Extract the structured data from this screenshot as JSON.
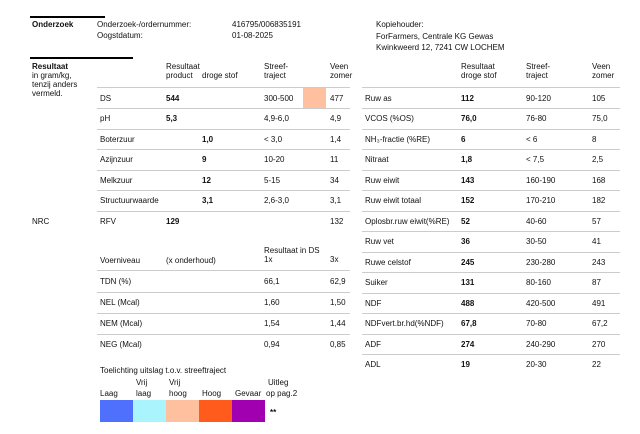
{
  "header": {
    "section": "Onderzoek",
    "fields": [
      {
        "label": "Onderzoek-/ordernummer:",
        "value": "416795/006835191"
      },
      {
        "label": "Oogstdatum:",
        "value": "01-08-2025"
      }
    ],
    "copy_holder": {
      "label": "Kopiehouder:",
      "lines": [
        "ForFarmers, Centrale KG Gewas",
        "Kwinkweerd 12, 7241 CW  LOCHEM"
      ]
    }
  },
  "results": {
    "title": "Resultaat",
    "note": [
      "in gram/kg,",
      "tenzij anders",
      "vermeld."
    ],
    "nrc": "NRC",
    "left_table": {
      "header": {
        "result": "Resultaat",
        "product": "product",
        "dry": "droge stof",
        "target": [
          "Streef-",
          "traject"
        ],
        "veen": [
          "Veen",
          "zomer"
        ]
      },
      "rows": [
        {
          "name": "DS",
          "product": "544",
          "target": "300-500",
          "flag_color": "#ffc0a0",
          "veen": "477"
        },
        {
          "name": "pH",
          "product": "5,3",
          "target": "4,9-6,0",
          "veen": "4,9"
        },
        {
          "name": "Boterzuur",
          "dry": "1,0",
          "target": "< 3,0",
          "veen": "1,4"
        },
        {
          "name": "Azijnzuur",
          "dry": "9",
          "target": "10-20",
          "veen": "11"
        },
        {
          "name": "Melkzuur",
          "dry": "12",
          "target": "5-15",
          "veen": "34"
        },
        {
          "name": "Structuurwaarde",
          "dry": "3,1",
          "target": "2,6-3,0",
          "veen": "3,1"
        },
        {
          "name": "RFV",
          "product": "129",
          "veen": "132"
        }
      ]
    },
    "energy_table": {
      "header": {
        "level": "Voerniveau",
        "unit": "(x onderhoud)",
        "result": "Resultaat in DS",
        "x1": "1x",
        "x3": "3x"
      },
      "rows": [
        {
          "name": "TDN (%)",
          "x1": "66,1",
          "x3": "62,9"
        },
        {
          "name": "NEL (Mcal)",
          "x1": "1,60",
          "x3": "1,50"
        },
        {
          "name": "NEM (Mcal)",
          "x1": "1,54",
          "x3": "1,44"
        },
        {
          "name": "NEG (Mcal)",
          "x1": "0,94",
          "x3": "0,85"
        }
      ]
    },
    "legend": {
      "title": "Toelichting uitslag t.o.v. streeftraject",
      "items": [
        {
          "lines": [
            "Laag"
          ],
          "color": "#4f6ffd"
        },
        {
          "lines": [
            "Vrij",
            "laag"
          ],
          "color": "#aaf4fd"
        },
        {
          "lines": [
            "Vrij",
            "hoog"
          ],
          "color": "#ffc0a0"
        },
        {
          "lines": [
            "Hoog"
          ],
          "color": "#ff5b1c"
        },
        {
          "lines": [
            "Gevaar"
          ],
          "color": "#a000b0"
        }
      ],
      "explain": [
        "Uitleg",
        "op pag.2"
      ],
      "mark": "**"
    },
    "right_table": {
      "header": {
        "result": [
          "Resultaat",
          "droge stof"
        ],
        "target": [
          "Streef-",
          "traject"
        ],
        "veen": [
          "Veen",
          "zomer"
        ]
      },
      "rows": [
        {
          "name": "Ruw as",
          "value": "112",
          "target": "90-120",
          "veen": "105"
        },
        {
          "name": "VCOS (%OS)",
          "value": "76,0",
          "target": "76-80",
          "veen": "75,0"
        },
        {
          "name": "NH₃-fractie (%RE)",
          "value": "6",
          "target": "< 6",
          "veen": "8"
        },
        {
          "name": "Nitraat",
          "value": "1,8",
          "target": "< 7,5",
          "veen": "2,5"
        },
        {
          "name": "Ruw eiwit",
          "value": "143",
          "target": "160-190",
          "veen": "168"
        },
        {
          "name": "Ruw eiwit totaal",
          "value": "152",
          "target": "170-210",
          "veen": "182"
        },
        {
          "name": "Oplosbr.ruw eiwit(%RE)",
          "value": "52",
          "target": "40-60",
          "veen": "57"
        },
        {
          "name": "Ruw vet",
          "value": "36",
          "target": "30-50",
          "veen": "41"
        },
        {
          "name": "Ruwe celstof",
          "value": "245",
          "target": "230-280",
          "veen": "243"
        },
        {
          "name": "Suiker",
          "value": "131",
          "target": "80-160",
          "veen": "87"
        },
        {
          "name": "NDF",
          "value": "488",
          "target": "420-500",
          "veen": "491"
        },
        {
          "name": "NDFvert.br.hd(%NDF)",
          "value": "67,8",
          "target": "70-80",
          "veen": "67,2"
        },
        {
          "name": "ADF",
          "value": "274",
          "target": "240-290",
          "veen": "270"
        },
        {
          "name": "ADL",
          "value": "19",
          "target": "20-30",
          "veen": "22"
        }
      ]
    }
  }
}
